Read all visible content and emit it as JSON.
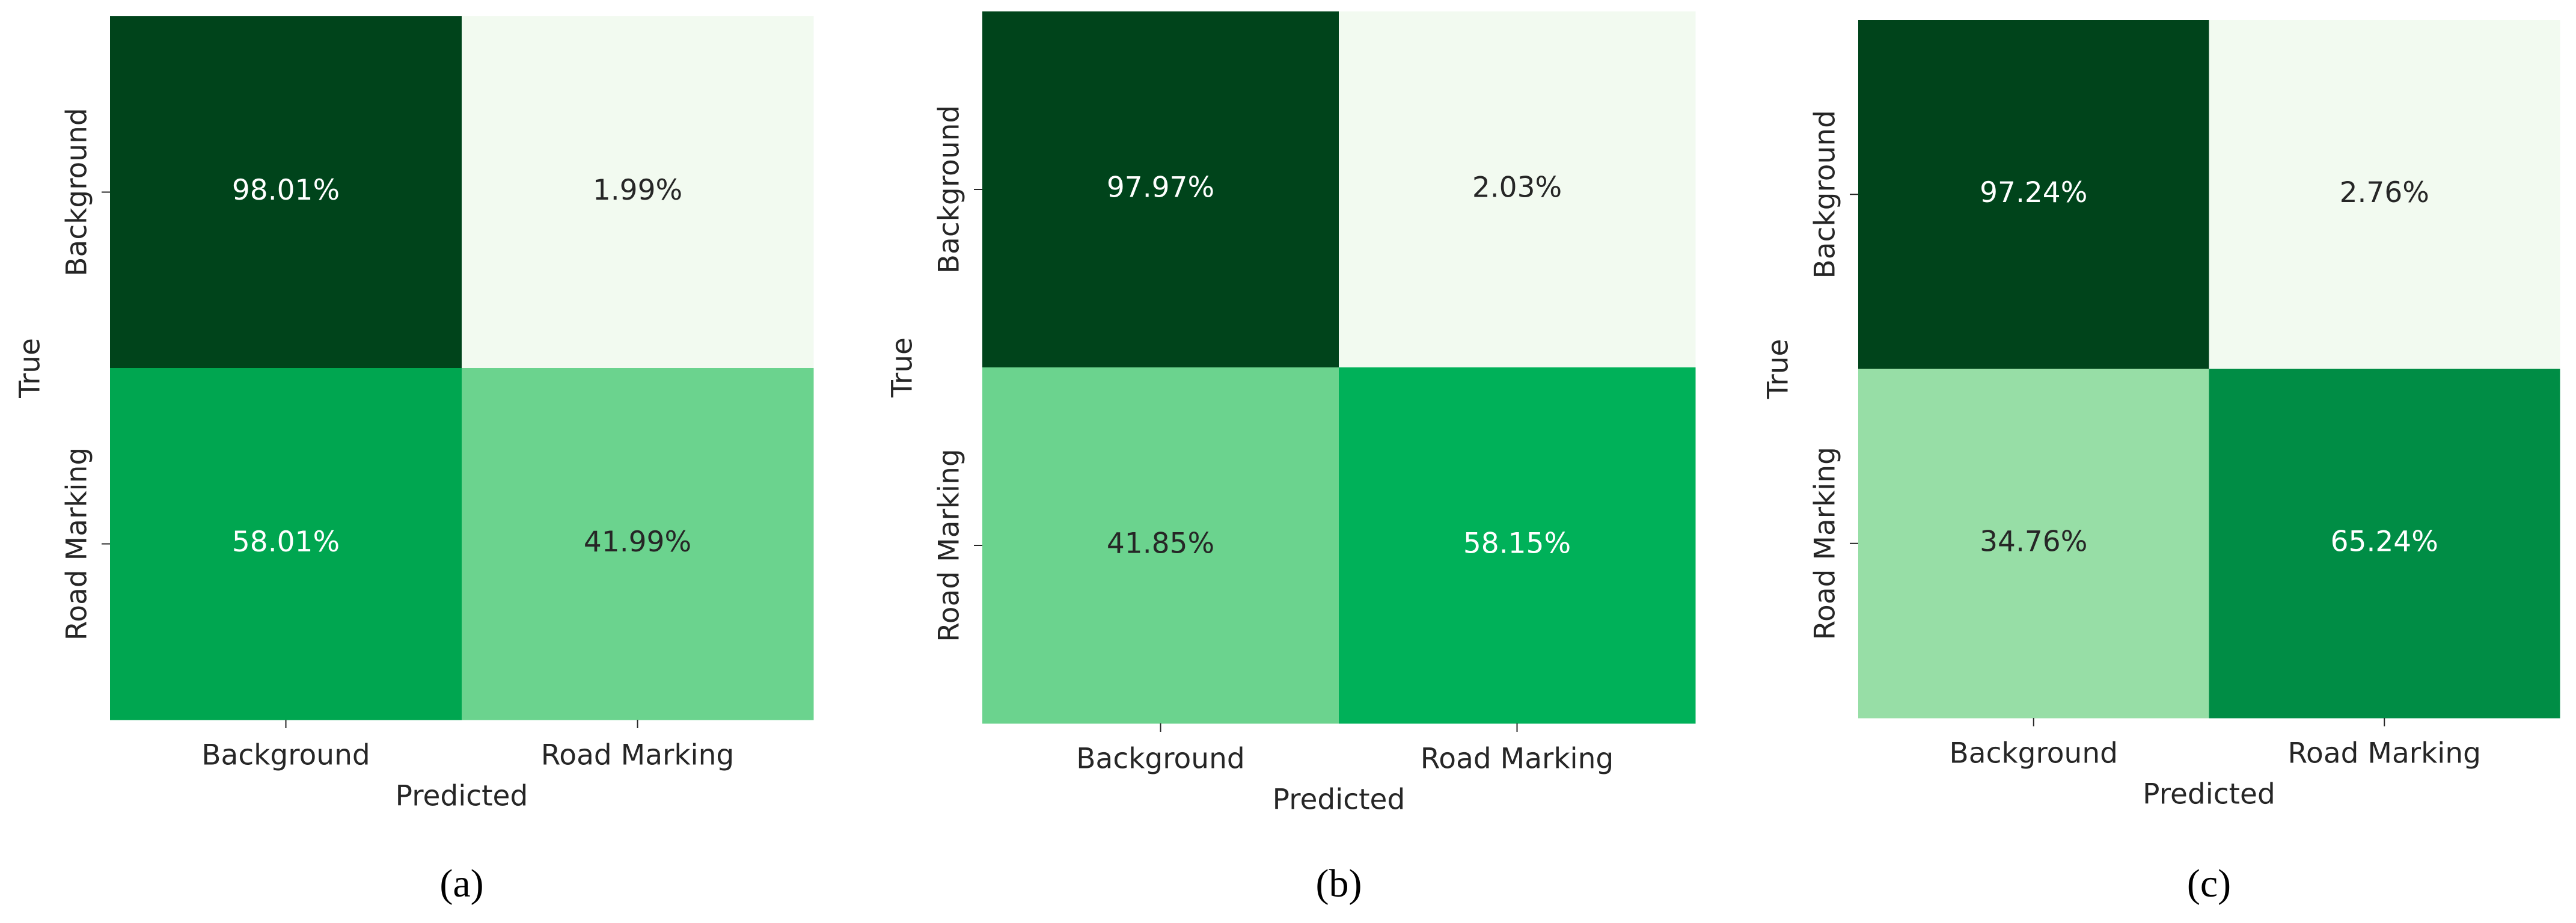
{
  "chart_data": [
    {
      "type": "heatmap",
      "caption": "(a)",
      "x_label": "Predicted",
      "y_label": "True",
      "x_categories": [
        "Background",
        "Road Marking"
      ],
      "y_categories": [
        "Background",
        "Road Marking"
      ],
      "values": [
        [
          98.01,
          1.99
        ],
        [
          58.01,
          41.99
        ]
      ],
      "value_labels": [
        [
          "98.01%",
          "1.99%"
        ],
        [
          "58.01%",
          "41.99%"
        ]
      ],
      "colors": [
        [
          "#00441b",
          "#f2faf0"
        ],
        [
          "#00a650",
          "#6bd38e"
        ]
      ]
    },
    {
      "type": "heatmap",
      "caption": "(b)",
      "x_label": "Predicted",
      "y_label": "True",
      "x_categories": [
        "Background",
        "Road Marking"
      ],
      "y_categories": [
        "Background",
        "Road Marking"
      ],
      "values": [
        [
          97.97,
          2.03
        ],
        [
          41.85,
          58.15
        ]
      ],
      "value_labels": [
        [
          "97.97%",
          "2.03%"
        ],
        [
          "41.85%",
          "58.15%"
        ]
      ],
      "colors": [
        [
          "#00441b",
          "#f2faf0"
        ],
        [
          "#6bd38e",
          "#00b159"
        ]
      ]
    },
    {
      "type": "heatmap",
      "caption": "(c)",
      "x_label": "Predicted",
      "y_label": "True",
      "x_categories": [
        "Background",
        "Road Marking"
      ],
      "y_categories": [
        "Background",
        "Road Marking"
      ],
      "values": [
        [
          97.24,
          2.76
        ],
        [
          34.76,
          65.24
        ]
      ],
      "value_labels": [
        [
          "97.24%",
          "2.76%"
        ],
        [
          "34.76%",
          "65.24%"
        ]
      ],
      "colors": [
        [
          "#00441b",
          "#f2faf0"
        ],
        [
          "#97dea6",
          "#008d45"
        ]
      ]
    }
  ]
}
